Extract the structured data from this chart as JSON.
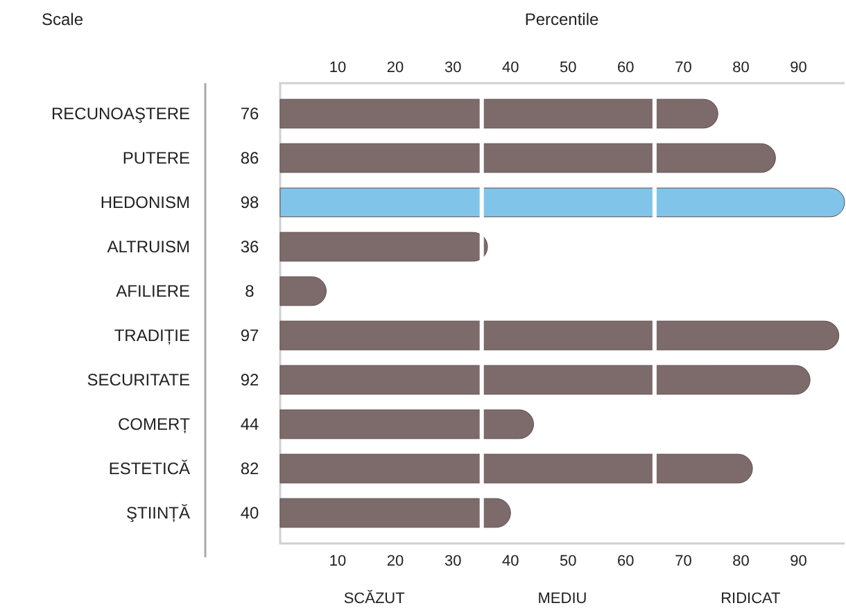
{
  "chart_data": {
    "type": "bar",
    "orientation": "horizontal",
    "title": "Percentile",
    "ylabel": "Scale",
    "categories": [
      "RECUNOAŞTERE",
      "PUTERE",
      "HEDONISM",
      "ALTRUISM",
      "AFILIERE",
      "TRADIȚIE",
      "SECURITATE",
      "COMERȚ",
      "ESTETICĂ",
      "ŞTIINȚĂ"
    ],
    "values": [
      76,
      86,
      98,
      36,
      8,
      97,
      92,
      44,
      82,
      40
    ],
    "colors": [
      "#7d6b6c",
      "#7d6b6c",
      "#80c4ea",
      "#7d6b6c",
      "#7d6b6c",
      "#7d6b6c",
      "#7d6b6c",
      "#7d6b6c",
      "#7d6b6c",
      "#7d6b6c"
    ],
    "data_labels": true,
    "xlim": [
      0,
      98
    ],
    "xticks": [
      10,
      20,
      30,
      40,
      50,
      60,
      70,
      80,
      90
    ],
    "x2lim": [
      0,
      98
    ],
    "x2ticks": [
      10,
      20,
      30,
      40,
      50,
      60,
      70,
      80,
      90
    ],
    "ref_lines": [
      {
        "axis": "x",
        "value": 35,
        "color": "#ffffff"
      },
      {
        "axis": "x",
        "value": 65,
        "color": "#ffffff"
      }
    ],
    "annotations": [
      "SCĂZUT",
      "MEDIU",
      "RIDICAT"
    ]
  }
}
